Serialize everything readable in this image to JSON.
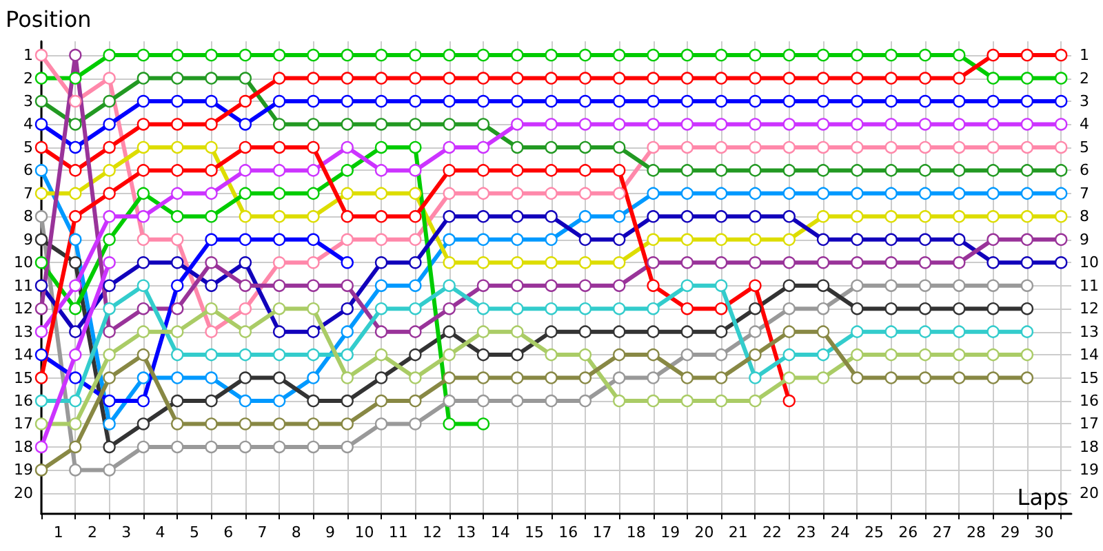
{
  "chart_data": {
    "type": "line",
    "xlabel": "Laps",
    "ylabel": "Position",
    "x": [
      0,
      1,
      2,
      3,
      4,
      5,
      6,
      7,
      8,
      9,
      10,
      11,
      12,
      13,
      14,
      15,
      16,
      17,
      18,
      19,
      20,
      21,
      22,
      23,
      24,
      25,
      26,
      27,
      28,
      29,
      30
    ],
    "xlim": [
      0,
      30.3
    ],
    "xticks": [
      {
        "value": 0,
        "label": null
      },
      {
        "value": 0.5,
        "label": "1"
      },
      {
        "value": 1,
        "label": null
      },
      {
        "value": 1.5,
        "label": "2"
      },
      {
        "value": 2,
        "label": null
      },
      {
        "value": 2.5,
        "label": "3"
      },
      {
        "value": 3,
        "label": null
      },
      {
        "value": 3.5,
        "label": "4"
      },
      {
        "value": 4,
        "label": null
      },
      {
        "value": 4.5,
        "label": "5"
      },
      {
        "value": 5,
        "label": null
      },
      {
        "value": 5.5,
        "label": "6"
      },
      {
        "value": 6,
        "label": null
      },
      {
        "value": 6.5,
        "label": "7"
      },
      {
        "value": 7,
        "label": null
      },
      {
        "value": 7.5,
        "label": "8"
      },
      {
        "value": 8,
        "label": null
      },
      {
        "value": 8.5,
        "label": "9"
      },
      {
        "value": 9,
        "label": null
      },
      {
        "value": 9.5,
        "label": "10"
      },
      {
        "value": 10,
        "label": null
      },
      {
        "value": 10.5,
        "label": "11"
      },
      {
        "value": 11,
        "label": null
      },
      {
        "value": 11.5,
        "label": "12"
      },
      {
        "value": 12,
        "label": null
      },
      {
        "value": 12.5,
        "label": "13"
      },
      {
        "value": 13,
        "label": null
      },
      {
        "value": 13.5,
        "label": "14"
      },
      {
        "value": 14,
        "label": null
      },
      {
        "value": 14.5,
        "label": "15"
      },
      {
        "value": 15,
        "label": null
      },
      {
        "value": 15.5,
        "label": "16"
      },
      {
        "value": 16,
        "label": null
      },
      {
        "value": 16.5,
        "label": "17"
      },
      {
        "value": 17,
        "label": null
      },
      {
        "value": 17.5,
        "label": "18"
      },
      {
        "value": 18,
        "label": null
      },
      {
        "value": 18.5,
        "label": "19"
      },
      {
        "value": 19,
        "label": null
      },
      {
        "value": 19.5,
        "label": "20"
      },
      {
        "value": 20,
        "label": null
      },
      {
        "value": 20.5,
        "label": "21"
      },
      {
        "value": 21,
        "label": null
      },
      {
        "value": 21.5,
        "label": "22"
      },
      {
        "value": 22,
        "label": null
      },
      {
        "value": 22.5,
        "label": "23"
      },
      {
        "value": 23,
        "label": null
      },
      {
        "value": 23.5,
        "label": "24"
      },
      {
        "value": 24,
        "label": null
      },
      {
        "value": 24.5,
        "label": "25"
      },
      {
        "value": 25,
        "label": null
      },
      {
        "value": 25.5,
        "label": "26"
      },
      {
        "value": 26,
        "label": null
      },
      {
        "value": 26.5,
        "label": "27"
      },
      {
        "value": 27,
        "label": null
      },
      {
        "value": 27.5,
        "label": "28"
      },
      {
        "value": 28,
        "label": null
      },
      {
        "value": 28.5,
        "label": "29"
      },
      {
        "value": 29,
        "label": null
      },
      {
        "value": 29.5,
        "label": "30"
      },
      {
        "value": 30,
        "label": null
      }
    ],
    "ylim": [
      20.9,
      0.4
    ],
    "yticks": [
      1,
      2,
      3,
      4,
      5,
      6,
      7,
      8,
      9,
      10,
      11,
      12,
      13,
      14,
      15,
      16,
      17,
      18,
      19,
      20
    ],
    "y2lim": [
      20.9,
      0.4
    ],
    "y2ticks": [
      1,
      2,
      3,
      4,
      5,
      6,
      7,
      8,
      9,
      10,
      11,
      12,
      13,
      14,
      15,
      16,
      17,
      18,
      19,
      20
    ],
    "grid": true,
    "marker": "circle",
    "line_style": "solid",
    "series": [
      {
        "color": "#00cc00",
        "values": [
          2,
          2,
          1,
          1,
          1,
          1,
          1,
          1,
          1,
          1,
          1,
          1,
          1,
          1,
          1,
          1,
          1,
          1,
          1,
          1,
          1,
          1,
          1,
          1,
          1,
          1,
          1,
          1,
          2,
          2,
          2
        ]
      },
      {
        "color": "#ff88aa",
        "values": [
          1,
          3,
          2,
          9,
          9,
          13,
          12,
          10,
          10,
          9,
          9,
          9,
          7,
          7,
          7,
          7,
          7,
          7,
          5,
          5,
          5,
          5,
          5,
          5,
          5,
          5,
          5,
          5,
          5,
          5,
          5
        ]
      },
      {
        "color": "#229922",
        "values": [
          3,
          4,
          3,
          2,
          2,
          2,
          2,
          4,
          4,
          4,
          4,
          4,
          4,
          4,
          5,
          5,
          5,
          5,
          6,
          6,
          6,
          6,
          6,
          6,
          6,
          6,
          6,
          6,
          6,
          6,
          6
        ]
      },
      {
        "color": "#0000ff",
        "values": [
          4,
          5,
          4,
          3,
          3,
          3,
          4,
          3,
          3,
          3,
          3,
          3,
          3,
          3,
          3,
          3,
          3,
          3,
          3,
          3,
          3,
          3,
          3,
          3,
          3,
          3,
          3,
          3,
          3,
          3,
          3
        ]
      },
      {
        "color": "#ff0000",
        "values": [
          5,
          6,
          5,
          4,
          4,
          4,
          3,
          2,
          2,
          2,
          2,
          2,
          2,
          2,
          2,
          2,
          2,
          2,
          2,
          2,
          2,
          2,
          2,
          2,
          2,
          2,
          2,
          2,
          1,
          1,
          1
        ]
      },
      {
        "color": "#0099ff",
        "values": [
          6,
          9,
          17,
          15,
          15,
          15,
          16,
          16,
          15,
          13,
          11,
          11,
          9,
          9,
          9,
          9,
          8,
          8,
          7,
          7,
          7,
          7,
          7,
          7,
          7,
          7,
          7,
          7,
          7,
          7,
          7
        ]
      },
      {
        "color": "#dddd00",
        "values": [
          7,
          7,
          6,
          5,
          5,
          5,
          8,
          8,
          8,
          7,
          7,
          7,
          10,
          10,
          10,
          10,
          10,
          10,
          9,
          9,
          9,
          9,
          9,
          8,
          8,
          8,
          8,
          8,
          8,
          8,
          8
        ]
      },
      {
        "color": "#999999",
        "values": [
          8,
          19,
          19,
          18,
          18,
          18,
          18,
          18,
          18,
          18,
          17,
          17,
          16,
          16,
          16,
          16,
          16,
          15,
          15,
          14,
          14,
          13,
          12,
          12,
          11,
          11,
          11,
          11,
          11,
          11,
          null
        ]
      },
      {
        "color": "#333333",
        "values": [
          9,
          10,
          18,
          17,
          16,
          16,
          15,
          15,
          16,
          16,
          15,
          14,
          13,
          14,
          14,
          13,
          13,
          13,
          13,
          13,
          13,
          12,
          11,
          11,
          12,
          12,
          12,
          12,
          12,
          12,
          null
        ]
      },
      {
        "color": "#00cc00",
        "values": [
          10,
          12,
          9,
          7,
          8,
          8,
          7,
          7,
          7,
          6,
          5,
          5,
          17,
          17,
          null,
          null,
          null,
          null,
          null,
          null,
          null,
          null,
          null,
          null,
          null,
          null,
          null,
          null,
          null,
          null,
          null
        ]
      },
      {
        "color": "#1100bb",
        "values": [
          11,
          13,
          11,
          10,
          10,
          11,
          10,
          13,
          13,
          12,
          10,
          10,
          8,
          8,
          8,
          8,
          9,
          9,
          8,
          8,
          8,
          8,
          8,
          9,
          9,
          9,
          9,
          9,
          10,
          10,
          10
        ]
      },
      {
        "color": "#993399",
        "values": [
          12,
          1,
          13,
          12,
          12,
          10,
          11,
          11,
          11,
          11,
          13,
          13,
          12,
          11,
          11,
          11,
          11,
          11,
          10,
          10,
          10,
          10,
          10,
          10,
          10,
          10,
          10,
          10,
          9,
          9,
          9
        ]
      },
      {
        "color": "#cc33ff",
        "values": [
          13,
          11,
          8,
          8,
          7,
          7,
          6,
          6,
          6,
          5,
          6,
          6,
          5,
          5,
          4,
          4,
          4,
          4,
          4,
          4,
          4,
          4,
          4,
          4,
          4,
          4,
          4,
          4,
          4,
          4,
          4
        ]
      },
      {
        "color": "#0000ff",
        "values": [
          14,
          15,
          16,
          16,
          11,
          9,
          9,
          9,
          9,
          10,
          null,
          null,
          null,
          null,
          null,
          null,
          null,
          null,
          null,
          null,
          null,
          null,
          null,
          null,
          null,
          null,
          null,
          null,
          null,
          null,
          null
        ]
      },
      {
        "color": "#ff0000",
        "values": [
          15,
          8,
          7,
          6,
          6,
          6,
          5,
          5,
          5,
          8,
          8,
          8,
          6,
          6,
          6,
          6,
          6,
          6,
          11,
          12,
          12,
          11,
          16,
          null,
          null,
          null,
          null,
          null,
          null,
          null,
          null
        ]
      },
      {
        "color": "#33cccc",
        "values": [
          16,
          16,
          12,
          11,
          14,
          14,
          14,
          14,
          14,
          14,
          12,
          12,
          11,
          12,
          12,
          12,
          12,
          12,
          12,
          11,
          11,
          15,
          14,
          14,
          13,
          13,
          13,
          13,
          13,
          13,
          null
        ]
      },
      {
        "color": "#aacc66",
        "values": [
          17,
          17,
          14,
          13,
          13,
          12,
          13,
          12,
          12,
          15,
          14,
          15,
          14,
          13,
          13,
          14,
          14,
          16,
          16,
          16,
          16,
          16,
          15,
          15,
          14,
          14,
          14,
          14,
          14,
          14,
          null
        ]
      },
      {
        "color": "#cc33ff",
        "values": [
          18,
          14,
          10,
          null,
          null,
          null,
          null,
          null,
          null,
          null,
          null,
          null,
          null,
          null,
          null,
          null,
          null,
          null,
          null,
          null,
          null,
          null,
          null,
          null,
          null,
          null,
          null,
          null,
          null,
          null,
          null
        ]
      },
      {
        "color": "#888844",
        "values": [
          19,
          18,
          15,
          14,
          17,
          17,
          17,
          17,
          17,
          17,
          16,
          16,
          15,
          15,
          15,
          15,
          15,
          14,
          14,
          15,
          15,
          14,
          13,
          13,
          15,
          15,
          15,
          15,
          15,
          15,
          null
        ]
      }
    ]
  }
}
